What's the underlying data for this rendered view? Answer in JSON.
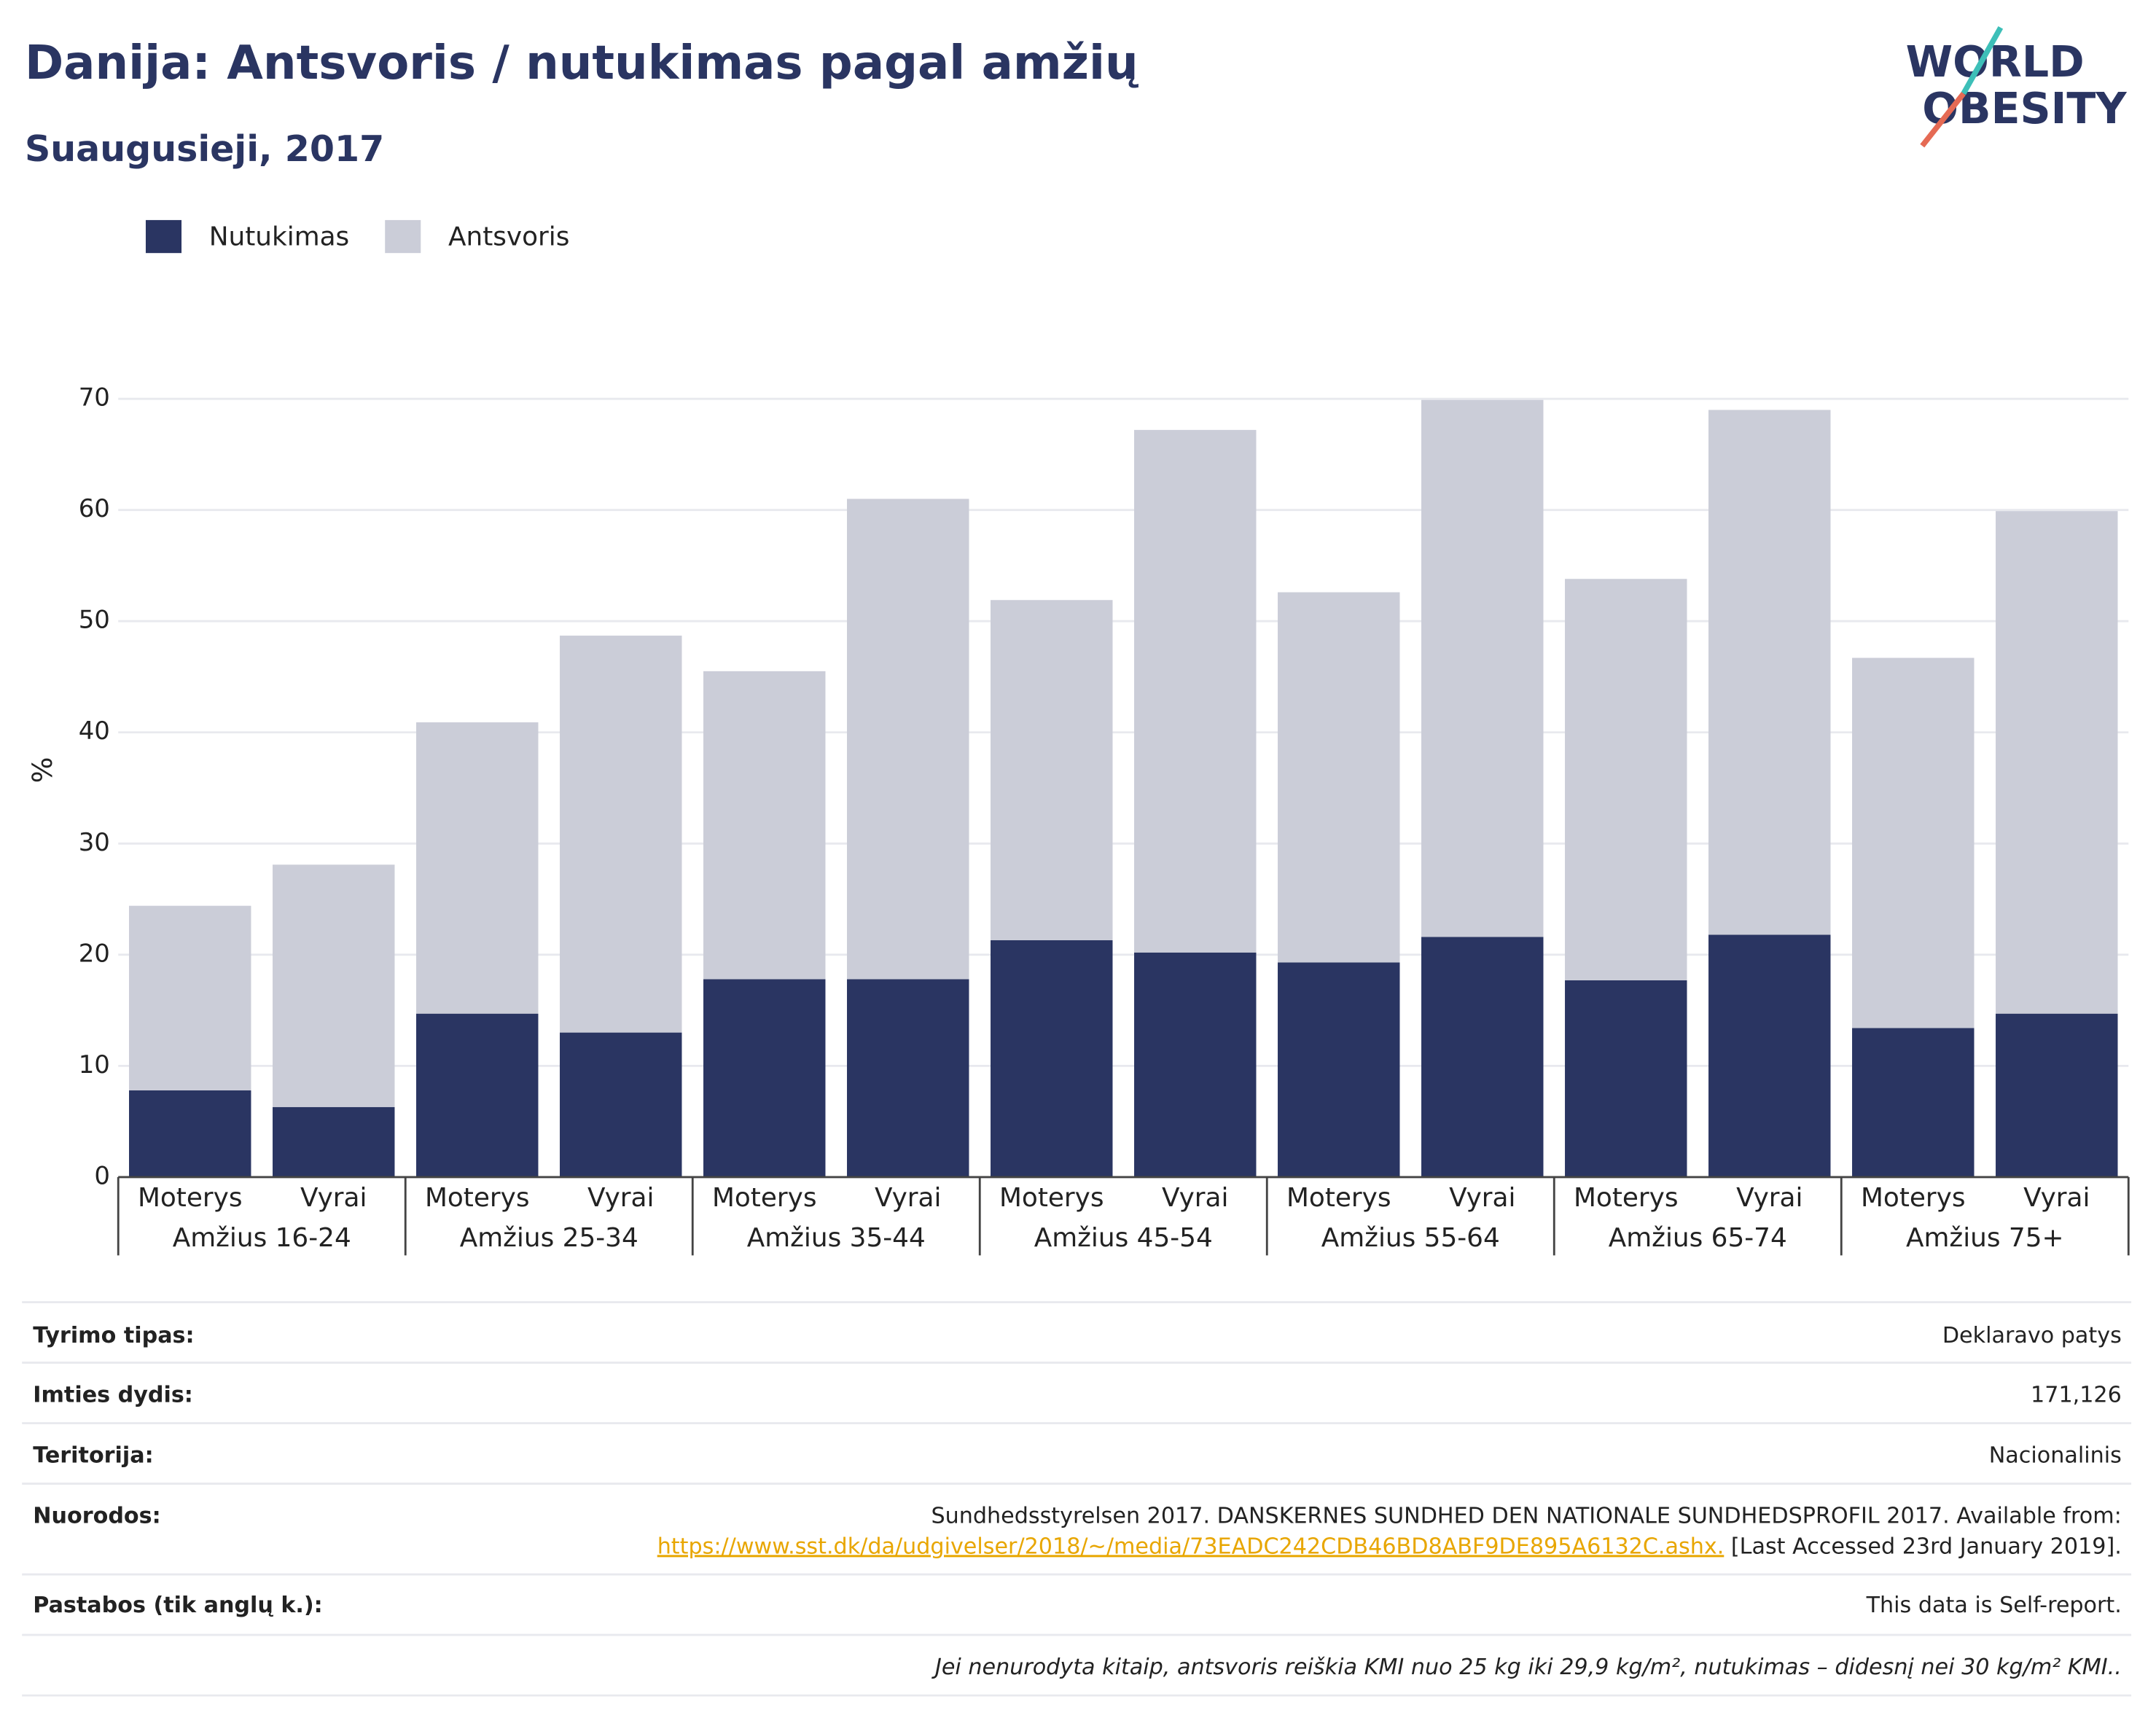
{
  "chart_data": {
    "type": "stacked_bar",
    "title": "Danija: Antsvoris / nutukimas pagal amžių",
    "subtitle": "Suaugusieji, 2017",
    "ylabel": "%",
    "categories": [
      "Moterys",
      "Vyrai",
      "Moterys",
      "Vyrai",
      "Moterys",
      "Vyrai",
      "Moterys",
      "Vyrai",
      "Moterys",
      "Vyrai",
      "Moterys",
      "Vyrai",
      "Moterys",
      "Vyrai"
    ],
    "groups": [
      "Amžius 16-24",
      "Amžius 25-34",
      "Amžius 35-44",
      "Amžius 45-54",
      "Amžius 55-64",
      "Amžius 65-74",
      "Amžius 75+"
    ],
    "series": [
      {
        "name": "Nutukimas",
        "color": "#2a3562",
        "values": [
          7.8,
          6.3,
          14.7,
          13.0,
          17.8,
          17.8,
          21.3,
          20.2,
          19.3,
          21.6,
          17.7,
          21.8,
          13.4,
          14.7
        ]
      },
      {
        "name": "Antsvoris",
        "color": "#cbcdd8",
        "values": [
          16.6,
          21.8,
          26.2,
          35.7,
          27.7,
          43.2,
          30.6,
          47.0,
          33.3,
          48.3,
          36.1,
          47.2,
          33.3,
          45.2
        ]
      }
    ],
    "ylim": [
      0,
      70
    ],
    "yticks": [
      0,
      10,
      20,
      30,
      40,
      50,
      60,
      70
    ],
    "grid": true,
    "legend": "top-left"
  },
  "logo": {
    "line1": "WORLD",
    "line2": "OBESITY"
  },
  "table": {
    "rows": [
      {
        "label": "Tyrimo tipas:",
        "value": "Deklaravo patys"
      },
      {
        "label": "Imties dydis:",
        "value": "171,126"
      },
      {
        "label": "Teritorija:",
        "value": "Nacionalinis"
      },
      {
        "label": "Nuorodos:",
        "value": {
          "text": "Sundhedsstyrelsen 2017. DANSKERNES SUNDHED DEN NATIONALE SUNDHEDSPROFIL 2017. Available from:",
          "link": "https://www.sst.dk/da/udgivelser/2018/~/media/73EADC242CDB46BD8ABF9DE895A6132C.ashx.",
          "after": " [Last Accessed 23rd January 2019]."
        }
      },
      {
        "label": "Pastabos (tik anglų k.):",
        "value": "This data is Self-report."
      }
    ],
    "footnote": "Jei nenurodyta kitaip, antsvoris reiškia KMI nuo 25 kg iki 29,9 kg/m², nutukimas – didesnį nei 30 kg/m² KMI.."
  }
}
